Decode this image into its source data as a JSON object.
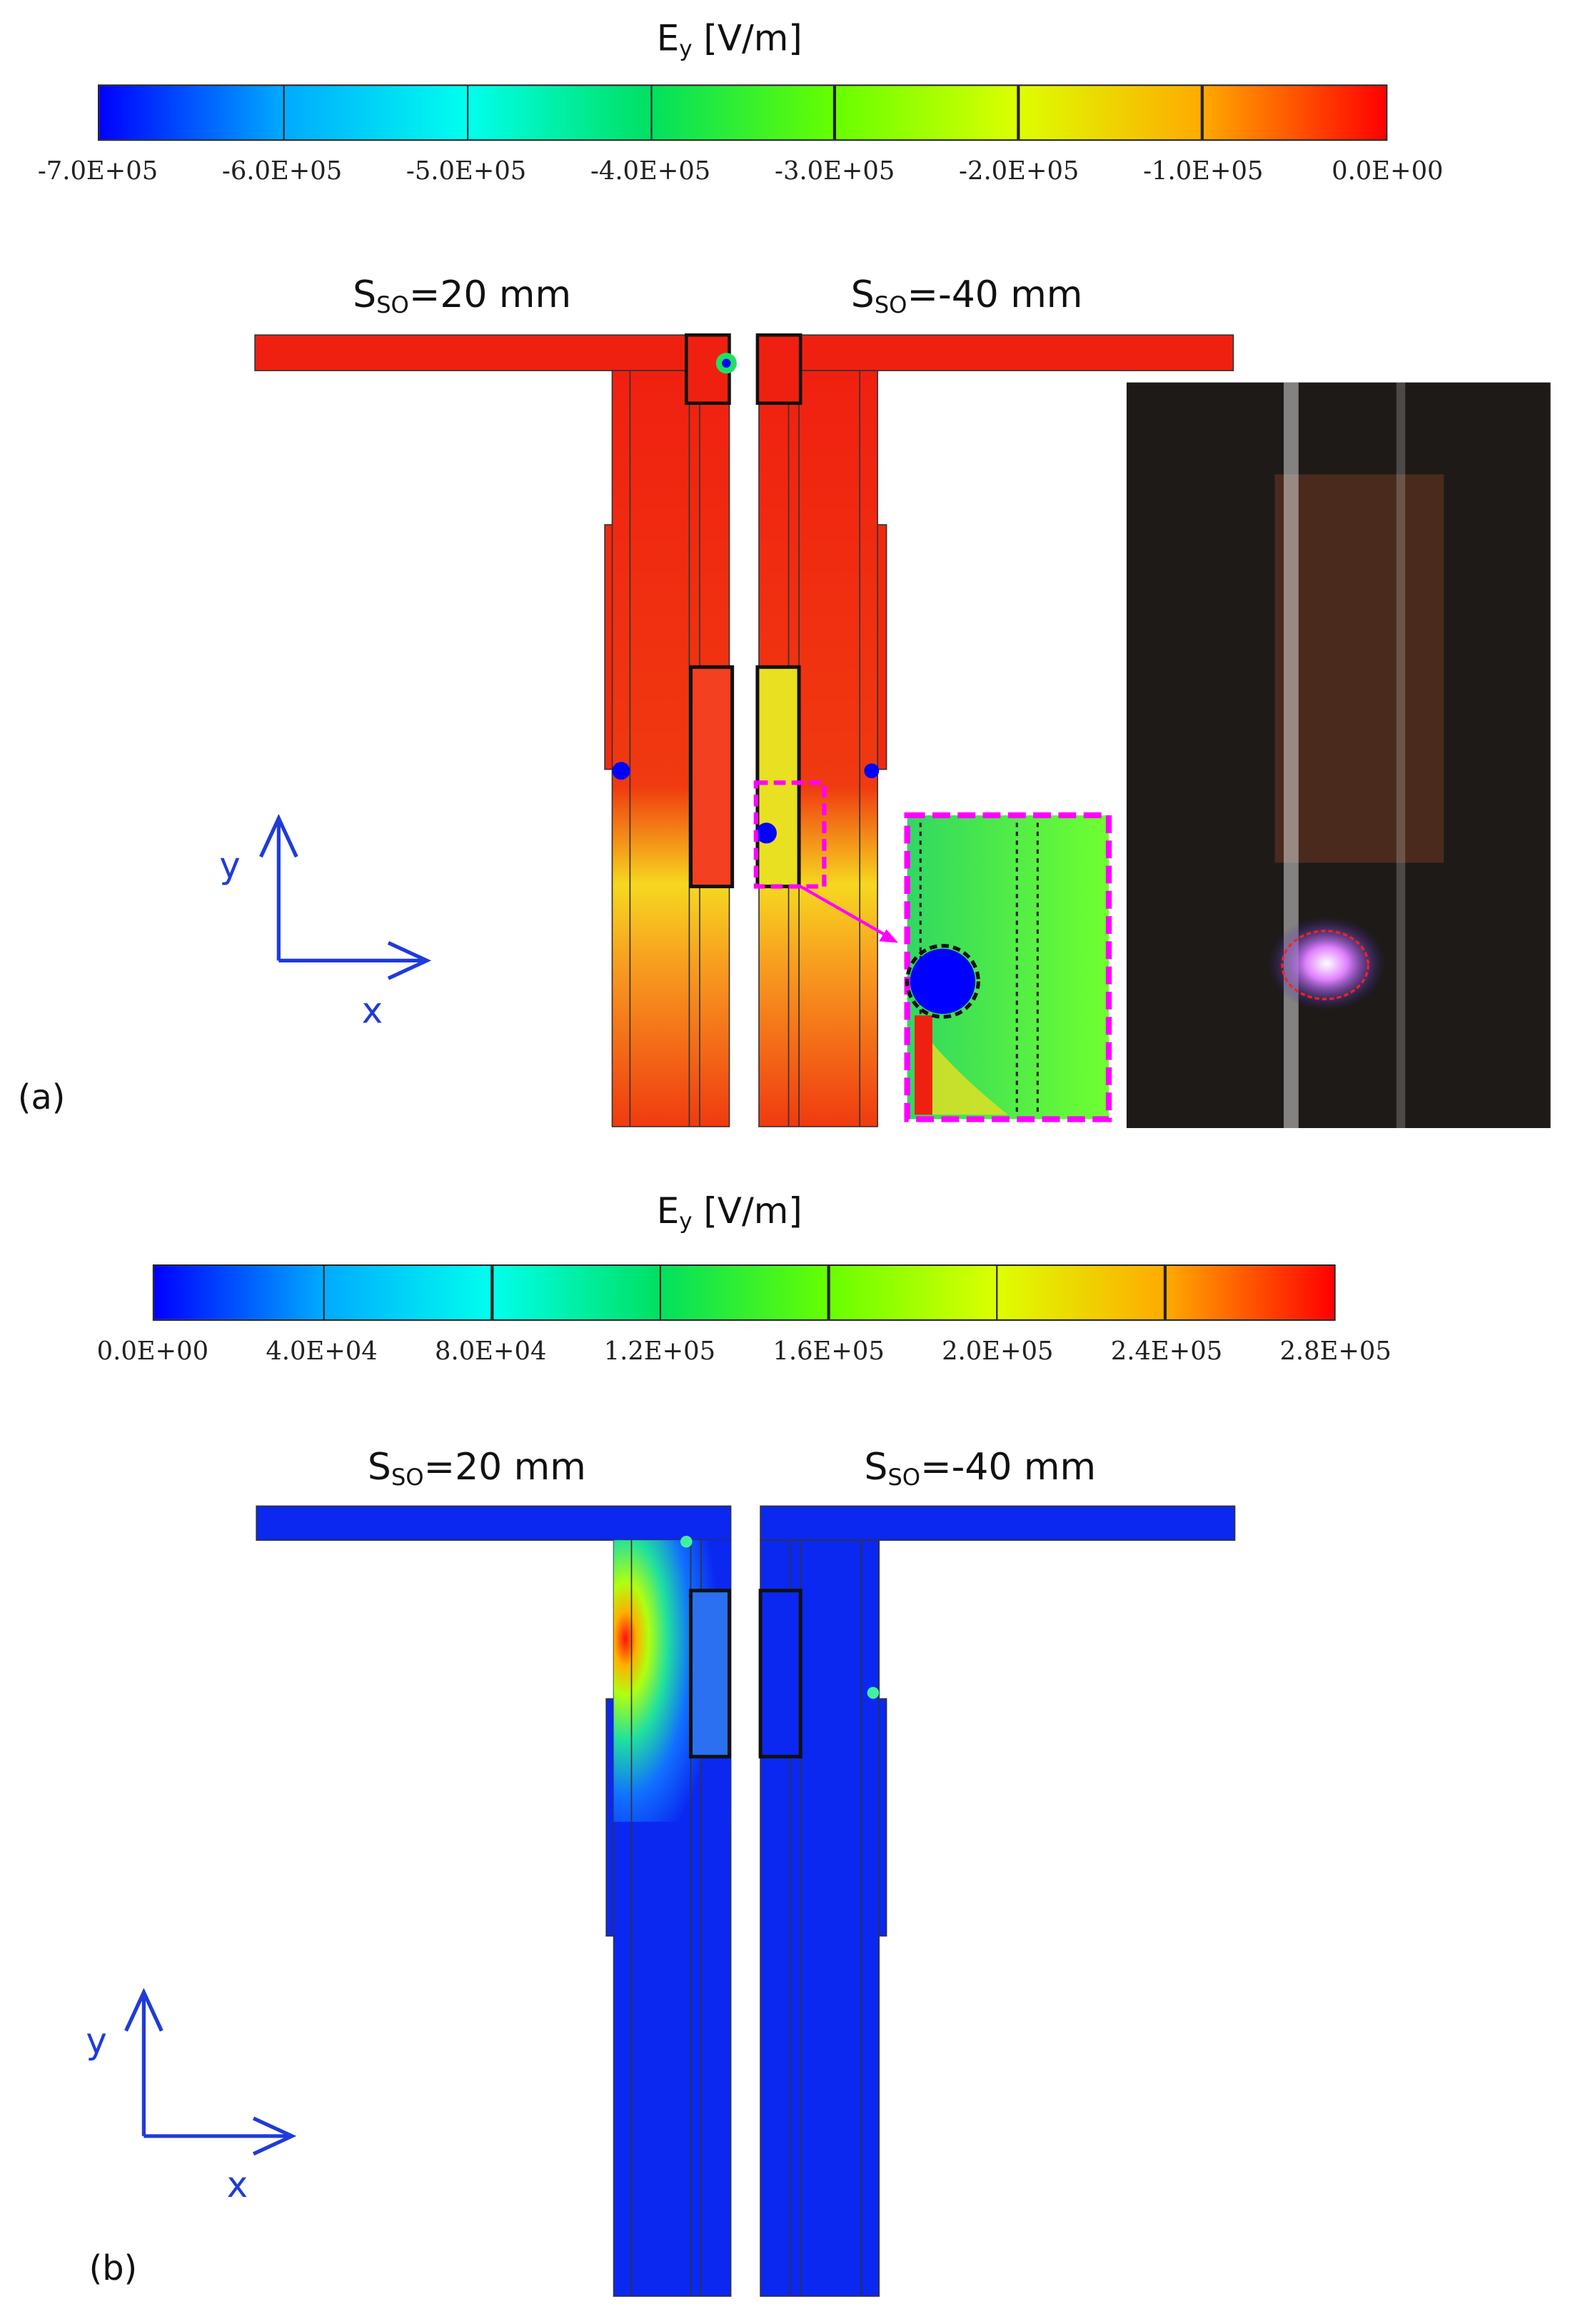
{
  "panel_a": {
    "label": "(a)",
    "colorbar": {
      "quantity": "E",
      "subscript": "y",
      "unit": "[V/m]",
      "ticks": [
        "-7.0E+05",
        "-6.0E+05",
        "-5.0E+05",
        "-4.0E+05",
        "-3.0E+05",
        "-2.0E+05",
        "-1.0E+05",
        "0.0E+00"
      ],
      "colors": [
        "#0000ff",
        "#00aaff",
        "#00ffee",
        "#00e060",
        "#66ff00",
        "#ddff00",
        "#ffaa00",
        "#ff0000"
      ]
    },
    "left_label": {
      "prefix": "S",
      "subscript": "SO",
      "value": "=20 mm"
    },
    "right_label": {
      "prefix": "S",
      "subscript": "SO",
      "value": "=-40 mm"
    },
    "axis": {
      "y": "y",
      "x": "x"
    },
    "field_color": "#f03c10",
    "inset_color": "#48e040",
    "inset_border_color": "#ff00ff"
  },
  "panel_b": {
    "label": "(b)",
    "colorbar": {
      "quantity": "E",
      "subscript": "y",
      "unit": "[V/m]",
      "ticks": [
        "0.0E+00",
        "4.0E+04",
        "8.0E+04",
        "1.2E+05",
        "1.6E+05",
        "2.0E+05",
        "2.4E+05",
        "2.8E+05"
      ],
      "colors": [
        "#0000ff",
        "#00aaff",
        "#00ffee",
        "#00e060",
        "#66ff00",
        "#ddff00",
        "#ffaa00",
        "#ff0000"
      ]
    },
    "left_label": {
      "prefix": "S",
      "subscript": "SO",
      "value": "=20 mm"
    },
    "right_label": {
      "prefix": "S",
      "subscript": "SO",
      "value": "=-40 mm"
    },
    "axis": {
      "y": "y",
      "x": "x"
    },
    "field_color": "#0a28f0"
  }
}
